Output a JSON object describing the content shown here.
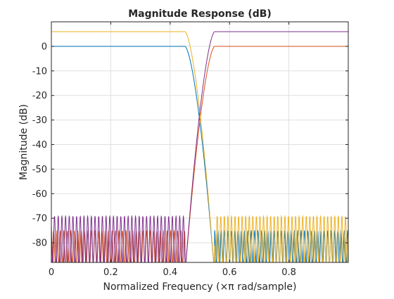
{
  "chart_data": {
    "type": "line",
    "title": "Magnitude Response (dB)",
    "xlabel": "Normalized Frequency (×π rad/sample)",
    "ylabel": "Magnitude (dB)",
    "xlim": [
      0,
      1
    ],
    "ylim": [
      -88,
      10
    ],
    "xticks": [
      0,
      0.2,
      0.4,
      0.6,
      0.8
    ],
    "xtick_labels": [
      "0",
      "0.2",
      "0.4",
      "0.6",
      "0.8"
    ],
    "yticks": [
      0,
      -10,
      -20,
      -30,
      -40,
      -50,
      -60,
      -70,
      -80
    ],
    "ytick_labels": [
      "0",
      "-10",
      "-20",
      "-30",
      "-40",
      "-50",
      "-60",
      "-70",
      "-80"
    ],
    "grid": true,
    "series": [
      {
        "color": "#0072bd",
        "response": "lowpass",
        "passband_edge": 0.45,
        "stopband_edge": 0.55,
        "passband_level_db": 0,
        "stopband_ripple_db": [
          -89,
          -75
        ]
      },
      {
        "color": "#d95319",
        "response": "highpass",
        "passband_edge": 0.55,
        "stopband_edge": 0.45,
        "passband_level_db": 0,
        "stopband_ripple_db": [
          -89,
          -75
        ]
      },
      {
        "color": "#edb120",
        "response": "lowpass",
        "passband_edge": 0.45,
        "stopband_edge": 0.55,
        "passband_level_db": 6,
        "stopband_ripple_db": [
          -89,
          -69
        ]
      },
      {
        "color": "#7e2f8e",
        "response": "highpass",
        "passband_edge": 0.55,
        "stopband_edge": 0.45,
        "passband_level_db": 6,
        "stopband_ripple_db": [
          -89,
          -69
        ]
      }
    ]
  }
}
